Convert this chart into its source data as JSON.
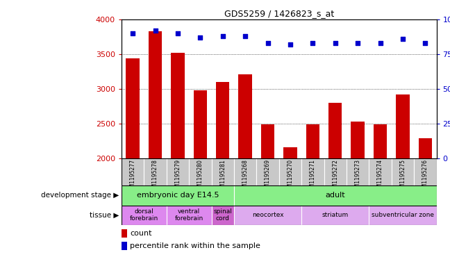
{
  "title": "GDS5259 / 1426823_s_at",
  "samples": [
    "GSM1195277",
    "GSM1195278",
    "GSM1195279",
    "GSM1195280",
    "GSM1195281",
    "GSM1195268",
    "GSM1195269",
    "GSM1195270",
    "GSM1195271",
    "GSM1195272",
    "GSM1195273",
    "GSM1195274",
    "GSM1195275",
    "GSM1195276"
  ],
  "counts": [
    3440,
    3830,
    3520,
    2980,
    3100,
    3210,
    2490,
    2160,
    2490,
    2800,
    2530,
    2490,
    2920,
    2290
  ],
  "percentiles": [
    90,
    92,
    90,
    87,
    88,
    88,
    83,
    82,
    83,
    83,
    83,
    83,
    86,
    83
  ],
  "ymin": 2000,
  "ymax": 4000,
  "yticks": [
    2000,
    2500,
    3000,
    3500,
    4000
  ],
  "right_yticks": [
    0,
    25,
    50,
    75,
    100
  ],
  "bar_color": "#cc0000",
  "dot_color": "#0000cc",
  "grid_color": "#000000",
  "bg_color": "#ffffff",
  "tick_bg": "#c8c8c8",
  "left_label_color": "#cc0000",
  "right_label_color": "#0000cc",
  "dev_stage_color": "#88ee88",
  "tissue_embryonic_color": "#dd88ee",
  "tissue_spinalcord_color": "#cc66cc",
  "tissue_adult_color": "#ddaaee",
  "bar_width": 0.6,
  "dot_size": 22,
  "dev_stage_data": [
    {
      "label": "embryonic day E14.5",
      "start": 0,
      "end": 4
    },
    {
      "label": "adult",
      "start": 5,
      "end": 13
    }
  ],
  "tissue_data": [
    {
      "label": "dorsal\nforebrain",
      "start": 0,
      "end": 1,
      "color": "#dd88ee"
    },
    {
      "label": "ventral\nforebrain",
      "start": 2,
      "end": 3,
      "color": "#dd88ee"
    },
    {
      "label": "spinal\ncord",
      "start": 4,
      "end": 4,
      "color": "#cc66cc"
    },
    {
      "label": "neocortex",
      "start": 5,
      "end": 7,
      "color": "#ddaaee"
    },
    {
      "label": "striatum",
      "start": 8,
      "end": 10,
      "color": "#ddaaee"
    },
    {
      "label": "subventricular zone",
      "start": 11,
      "end": 13,
      "color": "#ddaaee"
    }
  ]
}
